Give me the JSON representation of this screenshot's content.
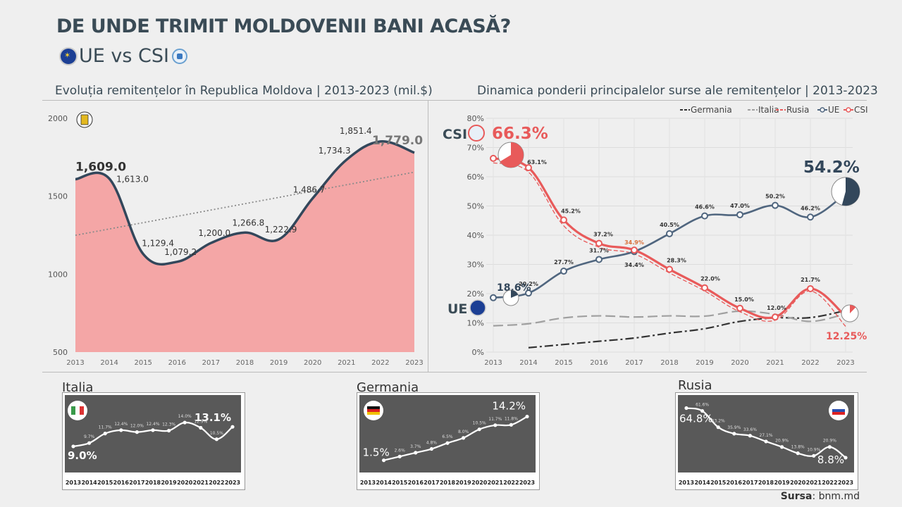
{
  "header": {
    "title": "DE UNDE TRIMIT MOLDOVENII BANI ACASĂ?",
    "subtitle": "UE vs CSI",
    "source_label": "Sursa",
    "source_value": ": bnm.md"
  },
  "colors": {
    "area_fill": "#f4a6a6",
    "line_dark": "#33475b",
    "csi_red": "#e85a5a",
    "ue_blue": "#50667f",
    "germany": "#333333",
    "italy": "#a0a0a0",
    "mini_bg": "#595959"
  },
  "chart_data": [
    {
      "id": "remittances",
      "type": "area",
      "title": "Evoluția remitențelor în Republica Moldova | 2013-2023 (mil.$)",
      "x": [
        "2013",
        "2014",
        "2015",
        "2016",
        "2017",
        "2018",
        "2019",
        "2020",
        "2021",
        "2022",
        "2023"
      ],
      "values": [
        1609.0,
        1613.0,
        1129.4,
        1079.2,
        1200.0,
        1266.8,
        1222.9,
        1486.7,
        1734.3,
        1851.4,
        1779.0
      ],
      "labels": [
        "1,609.0",
        "1,613.0",
        "1,129.4",
        "1,079.2",
        "1,200.0",
        "1,266.8",
        "1,222.9",
        "1,486.7",
        "1,734.3",
        "1,851.4",
        "1,779.0"
      ],
      "yticks": [
        "500",
        "1000",
        "1500",
        "2000"
      ],
      "ylim": [
        500,
        2000
      ],
      "trendline": true
    },
    {
      "id": "shares",
      "type": "line",
      "title": "Dinamica ponderii principalelor surse ale remitențelor | 2013-2023",
      "x": [
        "2013",
        "2014",
        "2015",
        "2016",
        "2017",
        "2018",
        "2019",
        "2020",
        "2021",
        "2022",
        "2023"
      ],
      "yticks": [
        "0%",
        "10%",
        "20%",
        "30%",
        "40%",
        "50%",
        "60%",
        "70%",
        "80%"
      ],
      "ylim": [
        0,
        80
      ],
      "series": [
        {
          "name": "Germania",
          "values": [
            null,
            1.5,
            2.6,
            3.7,
            4.8,
            6.5,
            8.0,
            10.5,
            11.7,
            11.8,
            14.2
          ]
        },
        {
          "name": "Italia",
          "values": [
            9.0,
            9.7,
            11.7,
            12.4,
            12.0,
            12.4,
            12.3,
            14.0,
            12.9,
            10.5,
            13.1
          ]
        },
        {
          "name": "Rusia",
          "values": [
            64.8,
            61.6,
            43.2,
            35.9,
            33.6,
            27.1,
            20.9,
            13.8,
            10.9,
            20.9,
            8.8
          ]
        },
        {
          "name": "UE",
          "values": [
            18.6,
            20.2,
            27.7,
            31.7,
            34.4,
            40.5,
            46.6,
            47.0,
            50.2,
            46.2,
            54.2
          ],
          "labels": [
            "18.6%",
            "20.2%",
            "27.7%",
            "31.7%",
            "34.4%",
            "40.5%",
            "46.6%",
            "47.0%",
            "50.2%",
            "46.2%",
            "54.2%"
          ]
        },
        {
          "name": "CSI",
          "values": [
            66.3,
            63.1,
            45.2,
            37.2,
            34.9,
            28.3,
            22.0,
            15.0,
            12.0,
            21.7,
            12.25
          ],
          "labels": [
            "66.3%",
            "63.1%",
            "45.2%",
            "37.2%",
            "34.9%",
            "28.3%",
            "22.0%",
            "15.0%",
            "12.0%",
            "21.7%",
            "12.25%"
          ]
        }
      ],
      "legend_placement": "top-right",
      "callouts": {
        "csi_label": "CSI",
        "csi_value": "66.3%",
        "ue_label": "UE",
        "ue_start": "18.6%",
        "ue_end": "54.2%",
        "csi_end": "12.25%"
      }
    },
    {
      "id": "italia",
      "type": "line",
      "title": "Italia",
      "x": [
        "2013",
        "2014",
        "2015",
        "2016",
        "2017",
        "2018",
        "2019",
        "2020",
        "2021",
        "2022",
        "2023"
      ],
      "values": [
        9.0,
        9.7,
        11.7,
        12.4,
        12.0,
        12.4,
        12.3,
        14.0,
        12.9,
        10.5,
        13.1
      ],
      "labels": [
        "9.0%",
        "9.7%",
        "11.7%",
        "12.4%",
        "12.0%",
        "12.4%",
        "12.3%",
        "14.0%",
        "12.9%",
        "10.5%",
        "13.1%"
      ],
      "ylim": [
        5,
        18
      ]
    },
    {
      "id": "germania",
      "type": "line",
      "title": "Germania",
      "x": [
        "2013",
        "2014",
        "2015",
        "2016",
        "2017",
        "2018",
        "2019",
        "2020",
        "2021",
        "2022",
        "2023"
      ],
      "values": [
        null,
        1.5,
        2.6,
        3.7,
        4.8,
        6.5,
        8.0,
        10.5,
        11.7,
        11.8,
        14.2
      ],
      "labels": [
        "",
        "1.5%",
        "2.6%",
        "3.7%",
        "4.8%",
        "6.5%",
        "8.0%",
        "10.5%",
        "11.7%",
        "11.8%",
        "14.2%"
      ],
      "ylim": [
        0,
        18
      ]
    },
    {
      "id": "rusia",
      "type": "line",
      "title": "Rusia",
      "x": [
        "2013",
        "2014",
        "2015",
        "2016",
        "2017",
        "2018",
        "2019",
        "2020",
        "2021",
        "2022",
        "2023"
      ],
      "values": [
        64.8,
        61.6,
        43.2,
        35.9,
        33.6,
        27.1,
        20.9,
        13.8,
        10.9,
        20.9,
        8.8
      ],
      "labels": [
        "64.8%",
        "61.6%",
        "43.2%",
        "35.9%",
        "33.6%",
        "27.1%",
        "20.9%",
        "13.8%",
        "10.9%",
        "20.9%",
        "8.8%"
      ],
      "ylim": [
        0,
        70
      ]
    }
  ]
}
